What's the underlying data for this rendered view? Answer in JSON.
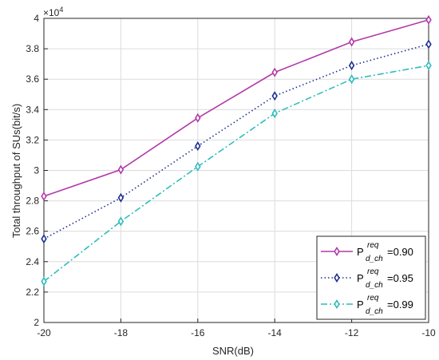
{
  "chart_data": {
    "type": "line",
    "xlabel": "SNR(dB)",
    "ylabel": "Total throughput of SUs(bit/s)",
    "y_multiplier": "×10",
    "y_exponent": "4",
    "x": [
      -20,
      -18,
      -16,
      -14,
      -12,
      -10
    ],
    "xlim": [
      -20,
      -10
    ],
    "ylim": [
      2,
      4
    ],
    "x_ticks": [
      "-20",
      "-18",
      "-16",
      "-14",
      "-12",
      "-10"
    ],
    "y_ticks": [
      "2",
      "2.2",
      "2.4",
      "2.6",
      "2.8",
      "3",
      "3.2",
      "3.4",
      "3.6",
      "3.8",
      "4"
    ],
    "grid": true,
    "legend_position": "bottom-right",
    "series": [
      {
        "legend_base": "P",
        "legend_sup": "req",
        "legend_sub": "d_ch",
        "legend_value": "=0.90",
        "color": "#b23aa8",
        "linestyle": "solid",
        "marker": "diamond",
        "values": [
          2.83,
          3.005,
          3.345,
          3.645,
          3.845,
          3.99
        ]
      },
      {
        "legend_base": "P",
        "legend_sup": "req",
        "legend_sub": "d_ch",
        "legend_value": "=0.95",
        "color": "#1f2f8f",
        "linestyle": "dotted",
        "marker": "diamond",
        "values": [
          2.55,
          2.82,
          3.16,
          3.49,
          3.69,
          3.83
        ]
      },
      {
        "legend_base": "P",
        "legend_sup": "req",
        "legend_sub": "d_ch",
        "legend_value": "=0.99",
        "color": "#2fbcbc",
        "linestyle": "dashdot",
        "marker": "diamond",
        "values": [
          2.27,
          2.665,
          3.025,
          3.375,
          3.6,
          3.69
        ]
      }
    ]
  }
}
